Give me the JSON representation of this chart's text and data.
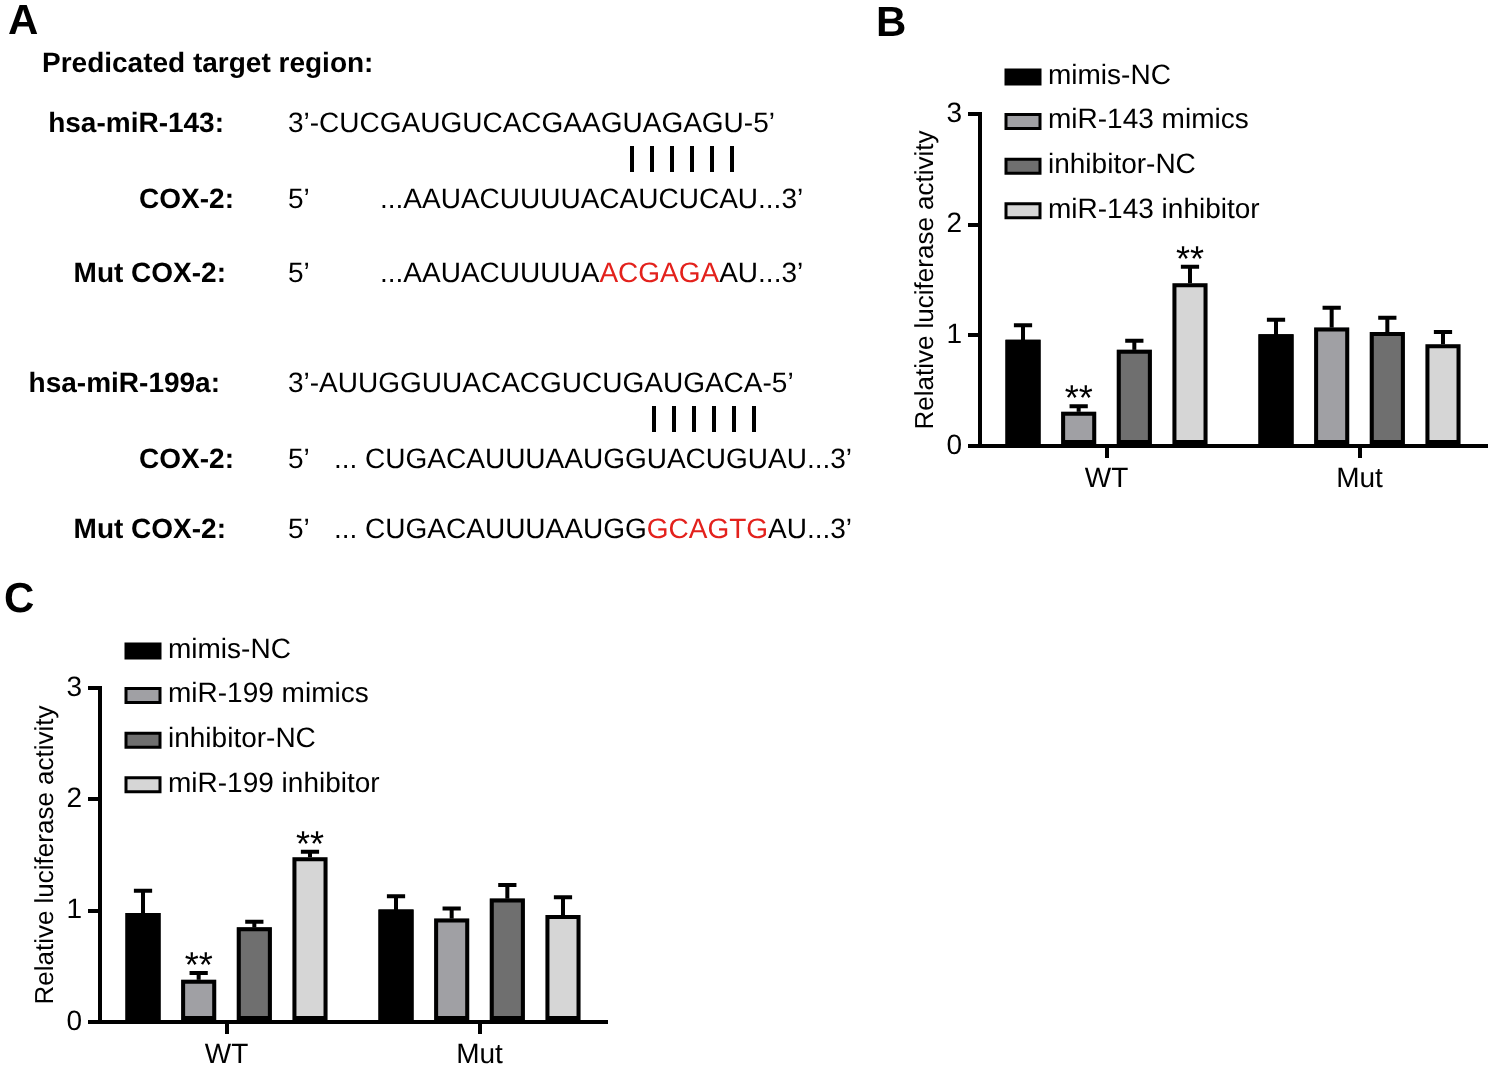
{
  "chart_data": [
    {
      "type": "other",
      "title": "A",
      "subtitle": "Predicated target region:",
      "annotations": [
        "hsa-miR-143:",
        "3’-CUCGAUGUCACGAAGUAGAGU-5’",
        "COX-2:",
        "5’",
        "...AAUACUUUUACAUCUCAU...3’",
        "Mut COX-2:",
        "5’",
        "...AAUACUUUUA",
        "ACGAGA",
        "AU...3’",
        "hsa-miR-199a:",
        "3’-AUUGGUUACACGUCUGAUGACA-5’",
        "COX-2:",
        "5’",
        "... CUGACAUUUAAUGGUACUGUAU...3’",
        "Mut COX-2:",
        "5’",
        "... CUGACAUUUAAUGG",
        "GCAGTG",
        "AU...3’"
      ],
      "colors": [
        "#000000",
        "#000000",
        "#000000",
        "#000000",
        "#000000",
        "#000000",
        "#000000",
        "#000000",
        "#e3211c",
        "#000000",
        "#000000",
        "#000000",
        "#000000",
        "#000000",
        "#000000",
        "#000000",
        "#000000",
        "#000000",
        "#e3211c",
        "#000000"
      ]
    },
    {
      "type": "bar",
      "title": "B",
      "categories": [
        "WT",
        "Mut"
      ],
      "ylabel": "Relative luciferase activity",
      "ylim": [
        0,
        3
      ],
      "yticks": [
        0,
        1,
        2,
        3
      ],
      "legend": "top left",
      "series": [
        {
          "name": "mimis-NC",
          "color": "#000000",
          "values": [
            0.96,
            1.01
          ],
          "errors": [
            0.13,
            0.13
          ]
        },
        {
          "name": "miR-143 mimics",
          "color": "#a0a0a4",
          "values": [
            0.31,
            1.07
          ],
          "errors": [
            0.05,
            0.18
          ],
          "value_labels": [
            "**",
            null
          ]
        },
        {
          "name": "inhibitor-NC",
          "color": "#6f6f6f",
          "values": [
            0.87,
            1.03
          ],
          "errors": [
            0.08,
            0.13
          ]
        },
        {
          "name": "miR-143 inhibitor",
          "color": "#d6d6d6",
          "values": [
            1.47,
            0.92
          ],
          "errors": [
            0.15,
            0.11
          ],
          "value_labels": [
            "**",
            null
          ]
        }
      ]
    },
    {
      "type": "bar",
      "title": "C",
      "categories": [
        "WT",
        "Mut"
      ],
      "ylabel": "Relative luciferase activity",
      "ylim": [
        0,
        3
      ],
      "yticks": [
        0,
        1,
        2,
        3
      ],
      "legend": "top left",
      "series": [
        {
          "name": "mimis-NC",
          "color": "#000000",
          "values": [
            0.98,
            1.01
          ],
          "errors": [
            0.2,
            0.12
          ]
        },
        {
          "name": "miR-199 mimics",
          "color": "#a0a0a4",
          "values": [
            0.38,
            0.93
          ],
          "errors": [
            0.06,
            0.09
          ],
          "value_labels": [
            "**",
            null
          ]
        },
        {
          "name": "inhibitor-NC",
          "color": "#6f6f6f",
          "values": [
            0.85,
            1.11
          ],
          "errors": [
            0.05,
            0.12
          ]
        },
        {
          "name": "miR-199 inhibitor",
          "color": "#d6d6d6",
          "values": [
            1.48,
            0.96
          ],
          "errors": [
            0.05,
            0.16
          ],
          "value_labels": [
            "**",
            null
          ]
        }
      ]
    }
  ]
}
